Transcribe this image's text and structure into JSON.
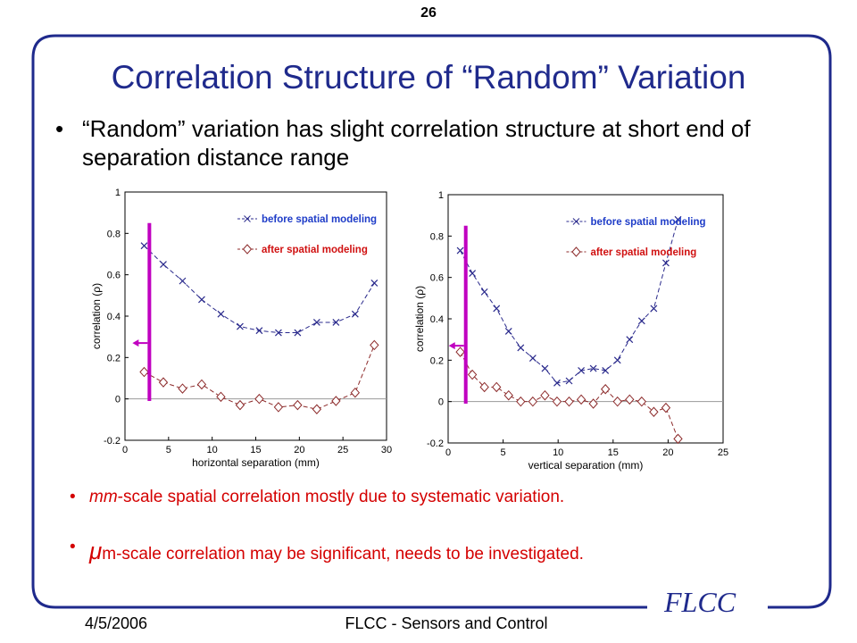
{
  "slide": {
    "number": "26",
    "title": "Correlation Structure of “Random” Variation",
    "bullet": "“Random” variation has slight correlation structure at short end of separation distance range",
    "sub_bullets": [
      {
        "text": "mm-scale spatial correlation mostly due to systematic variation.",
        "prefix_italic": "mm"
      },
      {
        "text": "m-scale correlation may be significant, needs to be investigated.",
        "prefix_italic": "μ"
      }
    ],
    "footer_date": "4/5/2006",
    "footer_center": "FLCC - Sensors and Control",
    "logo": "FLCC",
    "bullet_glyph": "•"
  },
  "colors": {
    "title": "#1f2a8c",
    "frame": "#1f2a8c",
    "before_series": "#2a2a8c",
    "after_series": "#8c2a2a",
    "marker_bar": "#c000c0",
    "sub_bullet_text": "#d40000"
  },
  "chart_data": [
    {
      "type": "line",
      "xlabel": "horizontal separation (mm)",
      "ylabel": "correlation (ρ)",
      "xlim": [
        0,
        30
      ],
      "ylim": [
        -0.2,
        1
      ],
      "xticks": [
        0,
        5,
        10,
        15,
        20,
        25,
        30
      ],
      "yticks": [
        -0.2,
        0,
        0.2,
        0.4,
        0.6,
        0.8,
        1
      ],
      "grid": false,
      "legend": "top-right",
      "series": [
        {
          "name": "before spatial modeling",
          "marker": "x",
          "x": [
            2.2,
            4.4,
            6.6,
            8.8,
            11,
            13.2,
            15.4,
            17.6,
            19.8,
            22,
            24.2,
            26.4,
            28.6
          ],
          "y": [
            0.74,
            0.65,
            0.57,
            0.48,
            0.41,
            0.35,
            0.33,
            0.32,
            0.32,
            0.37,
            0.37,
            0.41,
            0.56
          ]
        },
        {
          "name": "after spatial modeling",
          "marker": "diamond",
          "x": [
            2.2,
            4.4,
            6.6,
            8.8,
            11,
            13.2,
            15.4,
            17.6,
            19.8,
            22,
            24.2,
            26.4,
            28.6
          ],
          "y": [
            0.13,
            0.08,
            0.05,
            0.07,
            0.01,
            -0.03,
            0.0,
            -0.04,
            -0.03,
            -0.05,
            -0.01,
            0.03,
            0.26
          ]
        }
      ],
      "annotation_bar_x": 2.8
    },
    {
      "type": "line",
      "xlabel": "vertical separation (mm)",
      "ylabel": "correlation (ρ)",
      "xlim": [
        0,
        25
      ],
      "ylim": [
        -0.2,
        1
      ],
      "xticks": [
        0,
        5,
        10,
        15,
        20,
        25
      ],
      "yticks": [
        -0.2,
        0,
        0.2,
        0.4,
        0.6,
        0.8,
        1
      ],
      "grid": false,
      "legend": "top-right",
      "series": [
        {
          "name": "before spatial modeling",
          "marker": "x",
          "x": [
            1.1,
            2.2,
            3.3,
            4.4,
            5.5,
            6.6,
            7.7,
            8.8,
            9.9,
            11,
            12.1,
            13.2,
            14.3,
            15.4,
            16.5,
            17.6,
            18.7,
            19.8,
            20.9
          ],
          "y": [
            0.73,
            0.62,
            0.53,
            0.45,
            0.34,
            0.26,
            0.21,
            0.16,
            0.09,
            0.1,
            0.15,
            0.16,
            0.15,
            0.2,
            0.3,
            0.39,
            0.45,
            0.67,
            0.88
          ]
        },
        {
          "name": "after spatial modeling",
          "marker": "diamond",
          "x": [
            1.1,
            2.2,
            3.3,
            4.4,
            5.5,
            6.6,
            7.7,
            8.8,
            9.9,
            11,
            12.1,
            13.2,
            14.3,
            15.4,
            16.5,
            17.6,
            18.7,
            19.8,
            20.9
          ],
          "y": [
            0.24,
            0.13,
            0.07,
            0.07,
            0.03,
            0.0,
            0.0,
            0.03,
            0.0,
            0.0,
            0.01,
            -0.01,
            0.06,
            0.0,
            0.01,
            0.0,
            -0.05,
            -0.03,
            -0.18
          ]
        }
      ],
      "annotation_bar_x": 1.6
    }
  ]
}
